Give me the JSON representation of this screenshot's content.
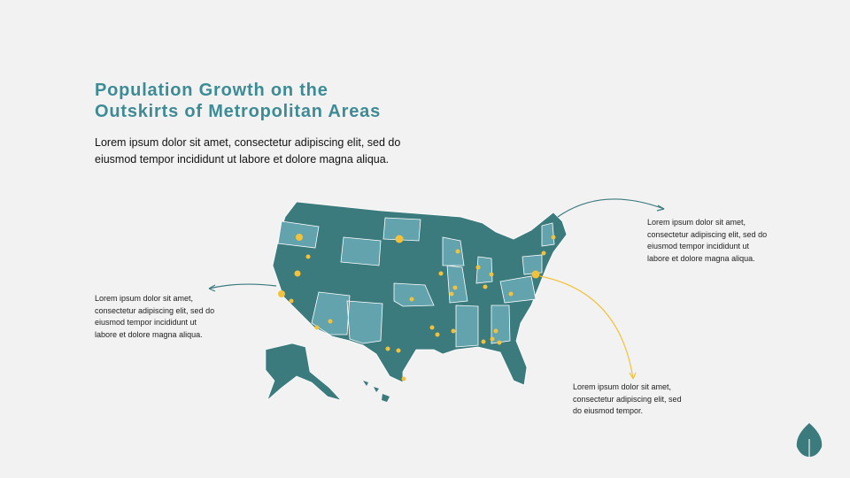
{
  "title": {
    "lines": [
      "Population Growth on the",
      "Outskirts of Metropolitan Areas"
    ]
  },
  "intro": {
    "lines": [
      "Lorem ipsum dolor sit amet, consectetur adipiscing elit, sed do",
      "eiusmod tempor incididunt ut labore et dolore magna aliqua."
    ]
  },
  "notes": [
    {
      "lines": [
        "Lorem ipsum dolor sit amet,",
        "consectetur adipiscing elit, sed do",
        "eiusmod tempor incididunt ut",
        "labore et dolore magna aliqua."
      ]
    },
    {
      "lines": [
        "Lorem ipsum dolor sit amet,",
        "consectetur adipiscing elit, sed do",
        "eiusmod tempor incididunt ut",
        "labore et dolore magna aliqua."
      ]
    },
    {
      "lines": [
        "Lorem ipsum dolor sit amet,",
        "consectetur adipiscing elit, sed",
        "do eiusmod tempor."
      ]
    }
  ]
}
